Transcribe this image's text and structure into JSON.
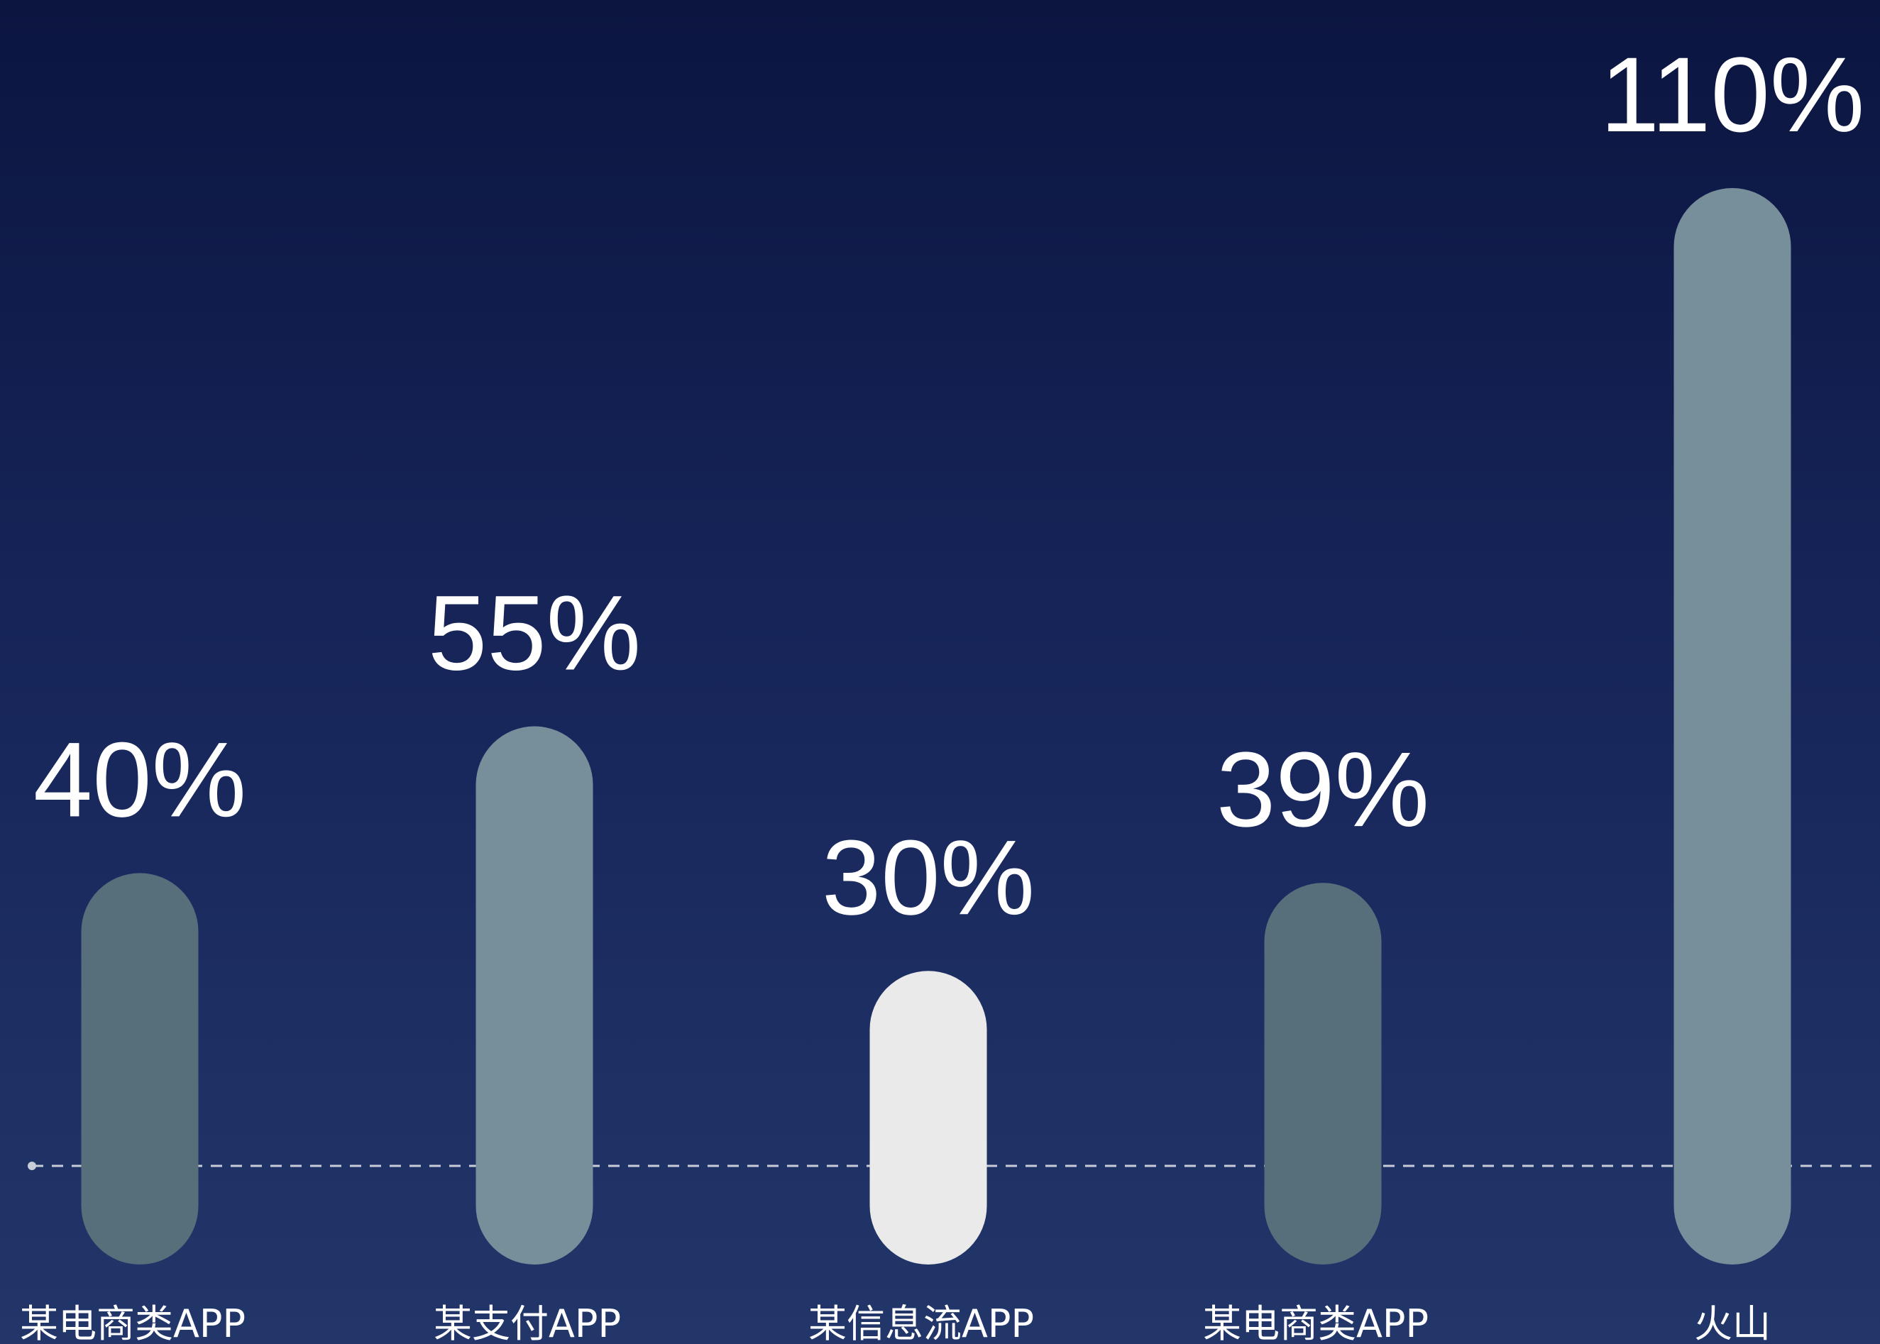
{
  "chart_data": {
    "type": "bar",
    "categories": [
      "某电商类APP",
      "某支付APP",
      "某信息流APP",
      "某电商类APP",
      "火山"
    ],
    "values": [
      40,
      55,
      30,
      39,
      110
    ],
    "value_labels": [
      "40%",
      "55%",
      "30%",
      "39%",
      "110%"
    ],
    "bar_colors": [
      "#566f7b",
      "#778f9b",
      "#eaeaea",
      "#566f7b",
      "#778f9b"
    ],
    "reference_line_value": 22,
    "ylim": [
      0,
      110
    ],
    "grid": false,
    "title": "",
    "xlabel": "",
    "ylabel": ""
  },
  "colors": {
    "background_top": "#0b1540",
    "background_bottom": "#22366a",
    "label_text": "#ffffff",
    "reference_line": "#c8cdd8"
  }
}
